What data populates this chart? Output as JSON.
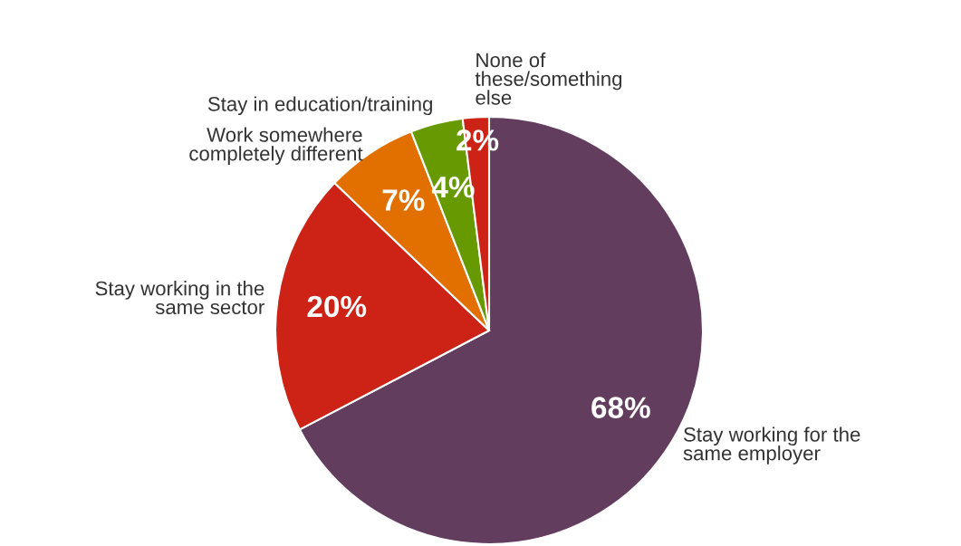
{
  "chart_data": {
    "type": "pie",
    "categories": [
      "Stay working for the same employer",
      "Stay working in the same sector",
      "Work somewhere completely different",
      "Stay in education/training",
      "None of these/something else"
    ],
    "values": [
      68,
      20,
      7,
      4,
      2
    ],
    "colors": [
      "#623d5e",
      "#cc2316",
      "#e27000",
      "#669a00",
      "#cc2316"
    ],
    "data_labels": true,
    "value_labels": [
      "68%",
      "20%",
      "7%",
      "4%",
      "2%"
    ],
    "legend": false
  }
}
